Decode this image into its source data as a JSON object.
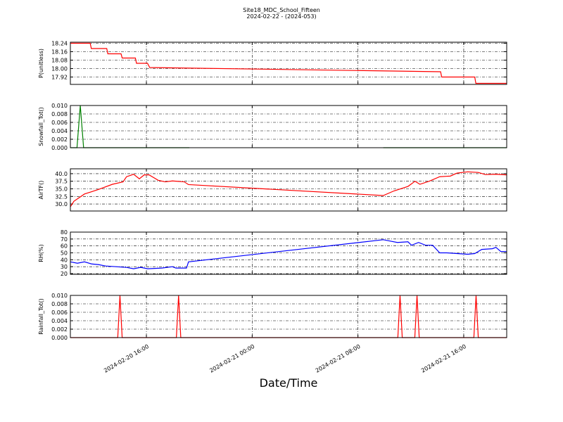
{
  "chart_data": {
    "type": "line",
    "title": "Site18_MDC_School_Fifteen",
    "subtitle": "2024-02-22 - (2024-053)",
    "xlabel": "Date/Time",
    "grid": true,
    "xlim": [
      "2024-02-20 10:15",
      "2024-02-21 19:15"
    ],
    "xticks": [
      "2024-02-20 16:00",
      "2024-02-21 00:00",
      "2024-02-21 08:00",
      "2024-02-21 16:00"
    ],
    "panels": [
      {
        "ylabel": "P(unitless)",
        "color": "#ff0000",
        "ylim": [
          17.85,
          18.25
        ],
        "yticks": [
          17.92,
          {
            "value": 18.0,
            "label": "18.00"
          },
          18.08,
          18.16,
          18.24
        ],
        "x": [
          "2024-02-20 10:15",
          "2024-02-20 11:45",
          "2024-02-20 11:50",
          "2024-02-20 13:00",
          "2024-02-20 13:05",
          "2024-02-20 14:05",
          "2024-02-20 14:10",
          "2024-02-20 15:10",
          "2024-02-20 15:15",
          "2024-02-20 16:05",
          "2024-02-20 16:15",
          "2024-02-21 14:15",
          "2024-02-21 14:20",
          "2024-02-21 16:50",
          "2024-02-21 16:55",
          "2024-02-21 19:15"
        ],
        "values": [
          18.24,
          18.24,
          18.19,
          18.19,
          18.14,
          18.14,
          18.1,
          18.1,
          18.05,
          18.05,
          18.01,
          17.97,
          17.92,
          17.92,
          17.86,
          17.86
        ]
      },
      {
        "ylabel": "Snowfall_Tot()",
        "color": "#008000",
        "ylim": [
          0,
          0.01
        ],
        "yticks": [
          {
            "value": 0,
            "label": "0.000"
          },
          {
            "value": 0.002,
            "label": "0.002"
          },
          {
            "value": 0.004,
            "label": "0.004"
          },
          {
            "value": 0.006,
            "label": "0.006"
          },
          {
            "value": 0.008,
            "label": "0.008"
          },
          {
            "value": 0.01,
            "label": "0.010"
          }
        ],
        "x": [
          "2024-02-20 10:15",
          "2024-02-20 10:45",
          "2024-02-20 11:00",
          "2024-02-20 11:15",
          "2024-02-20 19:15",
          "2024-02-21 00:00",
          "2024-02-21 09:55",
          "2024-02-21 19:15"
        ],
        "values": [
          0,
          0,
          0.01,
          0,
          0,
          null,
          0,
          0
        ]
      },
      {
        "ylabel": "AirTF()",
        "color": "#ff0000",
        "ylim": [
          27.7,
          41.6
        ],
        "yticks": [
          {
            "value": 30,
            "label": "30.0"
          },
          {
            "value": 32.5,
            "label": "32.5"
          },
          {
            "value": 35,
            "label": "35.0"
          },
          {
            "value": 37.5,
            "label": "37.5"
          },
          {
            "value": 40,
            "label": "40.0"
          }
        ],
        "x": [
          "2024-02-20 10:15",
          "2024-02-20 10:31",
          "2024-02-20 11:19",
          "2024-02-20 12:23",
          "2024-02-20 13:26",
          "2024-02-20 14:14",
          "2024-02-20 14:30",
          "2024-02-20 15:02",
          "2024-02-20 15:28",
          "2024-02-20 15:50",
          "2024-02-20 16:12",
          "2024-02-20 16:54",
          "2024-02-20 17:26",
          "2024-02-20 17:58",
          "2024-02-20 18:52",
          "2024-02-20 19:11",
          "2024-02-21 09:55",
          "2024-02-21 10:43",
          "2024-02-21 11:47",
          "2024-02-21 12:19",
          "2024-02-21 12:41",
          "2024-02-21 13:23",
          "2024-02-21 14:11",
          "2024-02-21 14:59",
          "2024-02-21 15:30",
          "2024-02-21 16:18",
          "2024-02-21 17:06",
          "2024-02-21 17:38",
          "2024-02-21 18:26",
          "2024-02-21 19:15"
        ],
        "values": [
          29.1,
          30.9,
          33.3,
          34.8,
          36.5,
          37.3,
          39,
          39.8,
          38.3,
          39.6,
          39.6,
          37.8,
          37.3,
          37.6,
          37.3,
          36.4,
          32.8,
          34.3,
          35.8,
          37.5,
          36.5,
          37.5,
          39,
          39.2,
          40.2,
          40.6,
          40.4,
          39.7,
          39.8,
          39.6
        ]
      },
      {
        "ylabel": "RH(%)",
        "color": "#0000ff",
        "ylim": [
          19,
          80
        ],
        "yticks": [
          20,
          30,
          40,
          50,
          60,
          70,
          80
        ],
        "x": [
          "2024-02-20 10:15",
          "2024-02-20 10:47",
          "2024-02-20 11:19",
          "2024-02-20 11:51",
          "2024-02-20 12:23",
          "2024-02-20 12:55",
          "2024-02-20 13:42",
          "2024-02-20 14:30",
          "2024-02-20 15:02",
          "2024-02-20 15:34",
          "2024-02-20 16:06",
          "2024-02-20 17:10",
          "2024-02-20 17:58",
          "2024-02-20 18:14",
          "2024-02-20 19:02",
          "2024-02-20 19:11",
          "2024-02-21 09:55",
          "2024-02-21 10:27",
          "2024-02-21 10:59",
          "2024-02-21 11:47",
          "2024-02-21 12:03",
          "2024-02-21 12:35",
          "2024-02-21 13:07",
          "2024-02-21 13:39",
          "2024-02-21 14:11",
          "2024-02-21 14:43",
          "2024-02-21 15:30",
          "2024-02-21 16:18",
          "2024-02-21 16:50",
          "2024-02-21 17:22",
          "2024-02-21 18:10",
          "2024-02-21 18:26",
          "2024-02-21 18:48",
          "2024-02-21 19:15"
        ],
        "values": [
          37,
          35,
          37,
          34,
          33,
          31,
          30,
          29,
          27,
          29,
          27,
          28,
          30,
          28,
          28,
          37,
          69,
          67,
          65,
          66,
          61,
          65,
          61,
          61,
          50,
          50,
          49,
          48,
          49,
          55,
          56,
          58,
          52,
          52
        ]
      },
      {
        "ylabel": "Rainfall_Tot()",
        "color": "#ff0000",
        "ylim": [
          0,
          0.01
        ],
        "yticks": [
          {
            "value": 0,
            "label": "0.000"
          },
          {
            "value": 0.002,
            "label": "0.002"
          },
          {
            "value": 0.004,
            "label": "0.004"
          },
          {
            "value": 0.006,
            "label": "0.006"
          },
          {
            "value": 0.008,
            "label": "0.008"
          },
          {
            "value": 0.01,
            "label": "0.010"
          }
        ],
        "x": [
          "2024-02-20 10:15",
          "2024-02-20 13:50",
          "2024-02-20 14:00",
          "2024-02-20 14:10",
          "2024-02-20 18:16",
          "2024-02-20 18:26",
          "2024-02-20 18:36",
          "2024-02-21 11:01",
          "2024-02-21 11:11",
          "2024-02-21 11:21",
          "2024-02-21 12:18",
          "2024-02-21 12:28",
          "2024-02-21 12:38",
          "2024-02-21 16:46",
          "2024-02-21 16:56",
          "2024-02-21 17:06",
          "2024-02-21 19:15"
        ],
        "values": [
          0,
          0,
          0.01,
          0,
          0,
          0.01,
          0,
          0,
          0.01,
          0,
          0,
          0.01,
          0,
          0,
          0.01,
          0,
          0
        ]
      }
    ]
  }
}
